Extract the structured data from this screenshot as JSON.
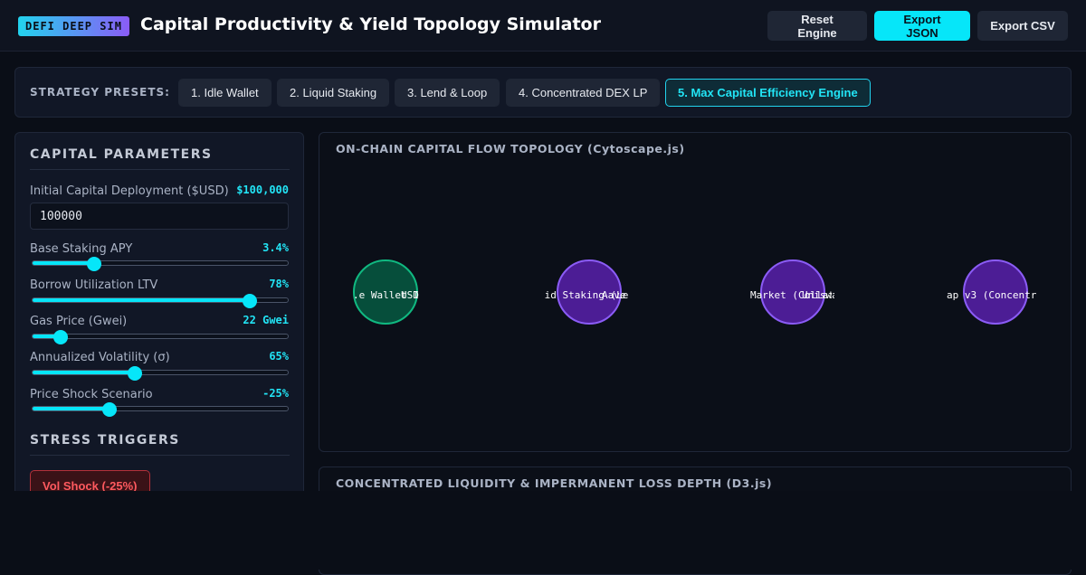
{
  "header": {
    "badge": "DEFI DEEP SIM",
    "title": "Capital Productivity & Yield Topology Simulator",
    "buttons": {
      "reset": "Reset Engine",
      "export_json": "Export JSON",
      "export_csv": "Export CSV"
    }
  },
  "presets": {
    "label": "STRATEGY PRESETS:",
    "items": [
      {
        "label": "1. Idle Wallet",
        "active": false
      },
      {
        "label": "2. Liquid Staking",
        "active": false
      },
      {
        "label": "3. Lend & Loop",
        "active": false
      },
      {
        "label": "4. Concentrated DEX LP",
        "active": false
      },
      {
        "label": "5. Max Capital Efficiency Engine",
        "active": true
      }
    ]
  },
  "parameters": {
    "title": "CAPITAL PARAMETERS",
    "capital": {
      "label": "Initial Capital Deployment ($USD)",
      "display": "$100,000",
      "value": "100000"
    },
    "sliders": [
      {
        "label": "Base Staking APY",
        "display": "3.4%",
        "level": 0.24
      },
      {
        "label": "Borrow Utilization LTV",
        "display": "78%",
        "level": 0.85
      },
      {
        "label": "Gas Price (Gwei)",
        "display": "22 Gwei",
        "level": 0.11
      },
      {
        "label": "Annualized Volatility (σ)",
        "display": "65%",
        "level": 0.4
      },
      {
        "label": "Price Shock Scenario",
        "display": "-25%",
        "level": 0.3
      }
    ]
  },
  "stress": {
    "title": "STRESS TRIGGERS",
    "vol_shock": "Vol Shock (-25%)"
  },
  "topology": {
    "title": "ON-CHAIN CAPITAL FLOW TOPOLOGY (Cytoscape.js)",
    "nodes": [
      {
        "label": ".e Wallet Idl",
        "overlap": "USD",
        "kind": "wallet",
        "accent": "#10b981"
      },
      {
        "label": "id Staking (Le",
        "overlap": "Aave",
        "kind": "protocol",
        "accent": "#8b5cf6"
      },
      {
        "label": "Market (Collat",
        "overlap": "Uniswap",
        "kind": "protocol",
        "accent": "#8b5cf6"
      },
      {
        "label": "ap v3 (Concentr",
        "overlap": "",
        "kind": "protocol",
        "accent": "#8b5cf6"
      }
    ]
  },
  "liquidity": {
    "title": "CONCENTRATED LIQUIDITY & IMPERMANENT LOSS DEPTH (D3.js)"
  },
  "colors": {
    "accent": "#06e6f9",
    "bg": "#0a0e17",
    "panel": "#111726",
    "danger": "#ff5a5f"
  }
}
